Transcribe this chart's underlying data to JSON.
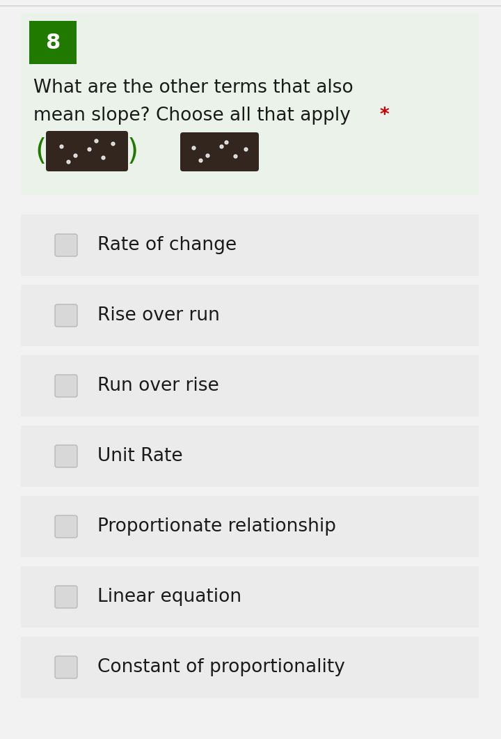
{
  "question_number": "8",
  "question_number_bg": "#217a00",
  "question_number_color": "#ffffff",
  "question_text_line1": "What are the other terms that also",
  "question_text_line2": "mean slope? Choose all that apply ",
  "asterisk": "*",
  "asterisk_color": "#cc0000",
  "question_bg": "#eaf2ea",
  "options": [
    "Rate of change",
    "Rise over run",
    "Run over rise",
    "Unit Rate",
    "Proportionate relationship",
    "Linear equation",
    "Constant of proportionality"
  ],
  "option_bg": "#ebebeb",
  "checkbox_fill": "#d8d8d8",
  "checkbox_border": "#b8b8b8",
  "text_color": "#1a1a1a",
  "font_size_question": 19,
  "font_size_option": 19,
  "font_size_number": 22,
  "page_bg": "#f2f2f2"
}
